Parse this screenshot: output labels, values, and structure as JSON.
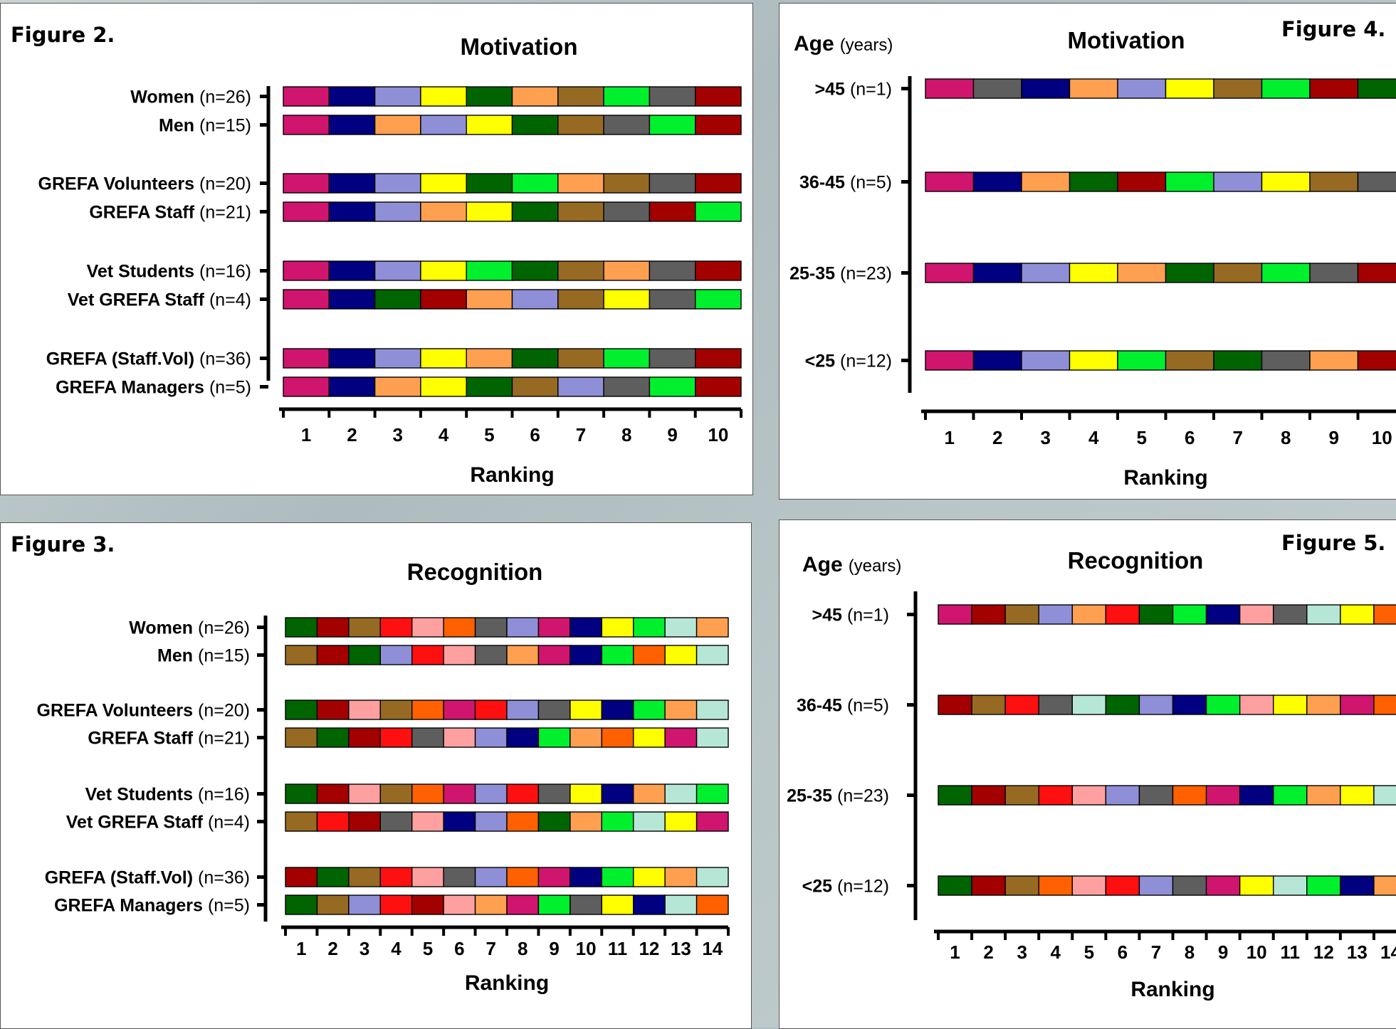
{
  "colors": {
    "magenta": "#D0156E",
    "navy": "#000080",
    "lavender": "#8F8FD8",
    "yellow": "#FFFF00",
    "dkgreen": "#006400",
    "orange": "#FFA050",
    "brown": "#966A22",
    "green": "#00F02E",
    "gray": "#5E5E5E",
    "maroon": "#A30000",
    "red": "#FF1010",
    "pink": "#FFA0A0",
    "redorange": "#FF6000",
    "mint": "#B6E7D6"
  },
  "chart_data": [
    {
      "id": "fig2",
      "figure_label": "Figure 2.",
      "type": "bar",
      "title": "Motivation",
      "ylabel": "",
      "xlabel": "Ranking",
      "ticks": [
        "1",
        "2",
        "3",
        "4",
        "5",
        "6",
        "7",
        "8",
        "9",
        "10"
      ],
      "rows": [
        {
          "name": "Women",
          "n": "(n=26)",
          "colors": [
            "magenta",
            "navy",
            "lavender",
            "yellow",
            "dkgreen",
            "orange",
            "brown",
            "green",
            "gray",
            "maroon"
          ]
        },
        {
          "name": "Men",
          "n": "(n=15)",
          "colors": [
            "magenta",
            "navy",
            "orange",
            "lavender",
            "yellow",
            "dkgreen",
            "brown",
            "gray",
            "green",
            "maroon"
          ]
        },
        {
          "name": "GREFA Volunteers",
          "n": "(n=20)",
          "colors": [
            "magenta",
            "navy",
            "lavender",
            "yellow",
            "dkgreen",
            "green",
            "orange",
            "brown",
            "gray",
            "maroon"
          ]
        },
        {
          "name": "GREFA Staff",
          "n": "(n=21)",
          "colors": [
            "magenta",
            "navy",
            "lavender",
            "orange",
            "yellow",
            "dkgreen",
            "brown",
            "gray",
            "maroon",
            "green"
          ]
        },
        {
          "name": "Vet Students",
          "n": "(n=16)",
          "colors": [
            "magenta",
            "navy",
            "lavender",
            "yellow",
            "green",
            "dkgreen",
            "brown",
            "orange",
            "gray",
            "maroon"
          ]
        },
        {
          "name": "Vet GREFA Staff",
          "n": "(n=4)",
          "colors": [
            "magenta",
            "navy",
            "dkgreen",
            "maroon",
            "orange",
            "lavender",
            "brown",
            "yellow",
            "gray",
            "green"
          ]
        },
        {
          "name": "GREFA (Staff.Vol)",
          "n": "(n=36)",
          "colors": [
            "magenta",
            "navy",
            "lavender",
            "yellow",
            "orange",
            "dkgreen",
            "brown",
            "green",
            "gray",
            "maroon"
          ]
        },
        {
          "name": "GREFA Managers",
          "n": "(n=5)",
          "colors": [
            "magenta",
            "navy",
            "orange",
            "yellow",
            "dkgreen",
            "brown",
            "lavender",
            "gray",
            "green",
            "maroon"
          ]
        }
      ]
    },
    {
      "id": "fig4",
      "figure_label": "Figure 4.",
      "type": "bar",
      "title": "Motivation",
      "ylabel": "Age",
      "ylabel_unit": "(years)",
      "xlabel": "Ranking",
      "ticks": [
        "1",
        "2",
        "3",
        "4",
        "5",
        "6",
        "7",
        "8",
        "9",
        "10"
      ],
      "rows": [
        {
          "name": ">45",
          "n": "(n=1)",
          "colors": [
            "magenta",
            "gray",
            "navy",
            "orange",
            "lavender",
            "yellow",
            "brown",
            "green",
            "maroon",
            "dkgreen"
          ]
        },
        {
          "name": "36-45",
          "n": "(n=5)",
          "colors": [
            "magenta",
            "navy",
            "orange",
            "dkgreen",
            "maroon",
            "green",
            "lavender",
            "yellow",
            "brown",
            "gray"
          ]
        },
        {
          "name": "25-35",
          "n": "(n=23)",
          "colors": [
            "magenta",
            "navy",
            "lavender",
            "yellow",
            "orange",
            "dkgreen",
            "brown",
            "green",
            "gray",
            "maroon"
          ]
        },
        {
          "name": "<25",
          "n": "(n=12)",
          "colors": [
            "magenta",
            "navy",
            "lavender",
            "yellow",
            "green",
            "brown",
            "dkgreen",
            "gray",
            "orange",
            "maroon"
          ]
        }
      ]
    },
    {
      "id": "fig3",
      "figure_label": "Figure 3.",
      "type": "bar",
      "title": "Recognition",
      "ylabel": "",
      "xlabel": "Ranking",
      "ticks": [
        "1",
        "2",
        "3",
        "4",
        "5",
        "6",
        "7",
        "8",
        "9",
        "10",
        "11",
        "12",
        "13",
        "14"
      ],
      "rows": [
        {
          "name": "Women",
          "n": "(n=26)",
          "colors": [
            "dkgreen",
            "maroon",
            "brown",
            "red",
            "pink",
            "redorange",
            "gray",
            "lavender",
            "magenta",
            "navy",
            "yellow",
            "green",
            "mint",
            "orange"
          ]
        },
        {
          "name": "Men",
          "n": "(n=15)",
          "colors": [
            "brown",
            "maroon",
            "dkgreen",
            "lavender",
            "red",
            "pink",
            "gray",
            "orange",
            "magenta",
            "navy",
            "green",
            "redorange",
            "yellow",
            "mint"
          ]
        },
        {
          "name": "GREFA Volunteers",
          "n": "(n=20)",
          "colors": [
            "dkgreen",
            "maroon",
            "pink",
            "brown",
            "redorange",
            "magenta",
            "red",
            "lavender",
            "gray",
            "yellow",
            "navy",
            "green",
            "orange",
            "mint"
          ]
        },
        {
          "name": "GREFA Staff",
          "n": "(n=21)",
          "colors": [
            "brown",
            "dkgreen",
            "maroon",
            "red",
            "gray",
            "pink",
            "lavender",
            "navy",
            "green",
            "orange",
            "redorange",
            "yellow",
            "magenta",
            "mint"
          ]
        },
        {
          "name": "Vet Students",
          "n": "(n=16)",
          "colors": [
            "dkgreen",
            "maroon",
            "pink",
            "brown",
            "redorange",
            "magenta",
            "lavender",
            "red",
            "gray",
            "yellow",
            "navy",
            "orange",
            "mint",
            "green"
          ]
        },
        {
          "name": "Vet GREFA Staff",
          "n": "(n=4)",
          "colors": [
            "brown",
            "red",
            "maroon",
            "gray",
            "pink",
            "navy",
            "lavender",
            "redorange",
            "dkgreen",
            "orange",
            "green",
            "mint",
            "yellow",
            "magenta"
          ]
        },
        {
          "name": "GREFA (Staff.Vol)",
          "n": "(n=36)",
          "colors": [
            "maroon",
            "dkgreen",
            "brown",
            "red",
            "pink",
            "gray",
            "lavender",
            "redorange",
            "magenta",
            "navy",
            "green",
            "yellow",
            "orange",
            "mint"
          ]
        },
        {
          "name": "GREFA Managers",
          "n": "(n=5)",
          "colors": [
            "dkgreen",
            "brown",
            "lavender",
            "red",
            "maroon",
            "pink",
            "orange",
            "magenta",
            "green",
            "gray",
            "yellow",
            "navy",
            "mint",
            "redorange"
          ]
        }
      ]
    },
    {
      "id": "fig5",
      "figure_label": "Figure 5.",
      "type": "bar",
      "title": "Recognition",
      "ylabel": "Age",
      "ylabel_unit": "(years)",
      "xlabel": "Ranking",
      "ticks": [
        "1",
        "2",
        "3",
        "4",
        "5",
        "6",
        "7",
        "8",
        "9",
        "10",
        "11",
        "12",
        "13",
        "14"
      ],
      "rows": [
        {
          "name": ">45",
          "n": "(n=1)",
          "colors": [
            "magenta",
            "maroon",
            "brown",
            "lavender",
            "orange",
            "red",
            "dkgreen",
            "green",
            "navy",
            "pink",
            "gray",
            "mint",
            "yellow",
            "redorange"
          ]
        },
        {
          "name": "36-45",
          "n": "(n=5)",
          "colors": [
            "maroon",
            "brown",
            "red",
            "gray",
            "mint",
            "dkgreen",
            "lavender",
            "navy",
            "green",
            "pink",
            "yellow",
            "orange",
            "magenta",
            "redorange"
          ]
        },
        {
          "name": "25-35",
          "n": "(n=23)",
          "colors": [
            "dkgreen",
            "maroon",
            "brown",
            "red",
            "pink",
            "lavender",
            "gray",
            "redorange",
            "magenta",
            "navy",
            "green",
            "orange",
            "yellow",
            "mint"
          ]
        },
        {
          "name": "<25",
          "n": "(n=12)",
          "colors": [
            "dkgreen",
            "maroon",
            "brown",
            "redorange",
            "pink",
            "red",
            "lavender",
            "gray",
            "magenta",
            "yellow",
            "mint",
            "green",
            "navy",
            "orange"
          ]
        }
      ]
    }
  ]
}
